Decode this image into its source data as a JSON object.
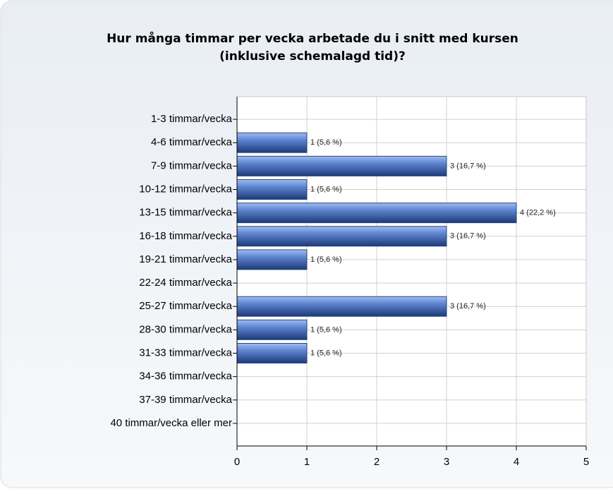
{
  "chart_data": {
    "type": "barh",
    "title": [
      "Hur många timmar per vecka arbetade du i snitt med kursen",
      "(inklusive schemalagd tid)?"
    ],
    "categories": [
      "1-3 timmar/vecka",
      "4-6 timmar/vecka",
      "7-9 timmar/vecka",
      "10-12 timmar/vecka",
      "13-15 timmar/vecka",
      "16-18 timmar/vecka",
      "19-21 timmar/vecka",
      "22-24 timmar/vecka",
      "25-27 timmar/vecka",
      "28-30 timmar/vecka",
      "31-33 timmar/vecka",
      "34-36 timmar/vecka",
      "37-39 timmar/vecka",
      "40 timmar/vecka eller mer"
    ],
    "values": [
      0,
      1,
      3,
      1,
      4,
      3,
      1,
      0,
      3,
      1,
      1,
      0,
      0,
      0
    ],
    "value_labels": [
      null,
      "1 (5,6 %)",
      "3 (16,7 %)",
      "1 (5,6 %)",
      "4 (22,2 %)",
      "3 (16,7 %)",
      "1 (5,6 %)",
      null,
      "3 (16,7 %)",
      "1 (5,6 %)",
      "1 (5,6 %)",
      null,
      null,
      null
    ],
    "color": "#4a72c0",
    "xlim": [
      0,
      5
    ],
    "xticks": [
      0,
      1,
      2,
      3,
      4,
      5
    ],
    "grid": true
  }
}
